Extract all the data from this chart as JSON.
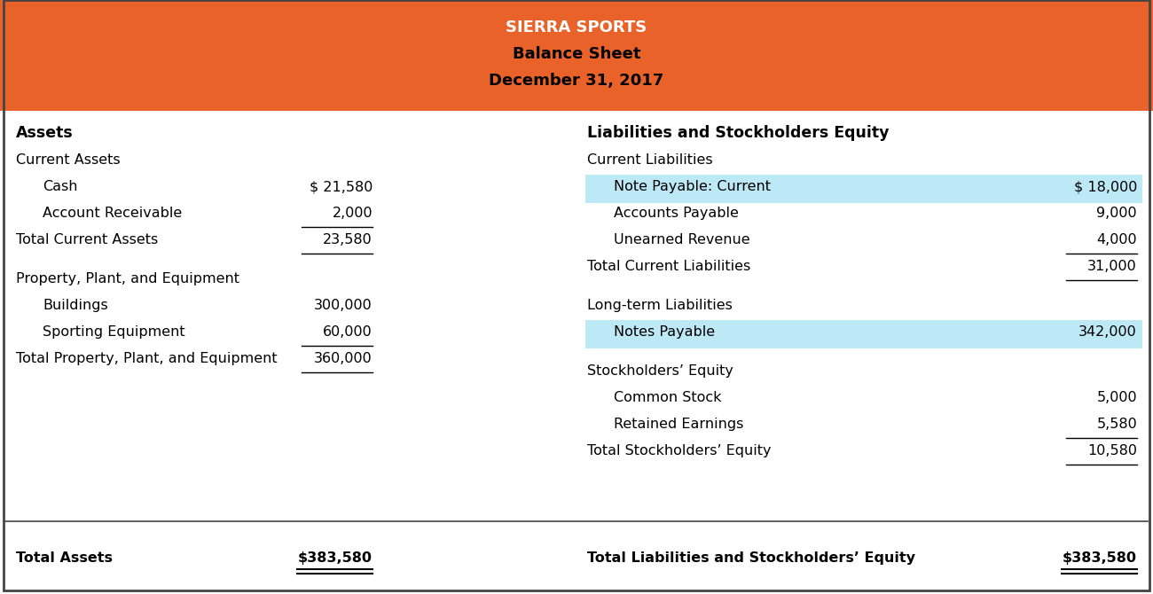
{
  "title_line1": "SIERRA SPORTS",
  "title_line2": "Balance Sheet",
  "title_line3": "December 31, 2017",
  "header_bg": "#E8622A",
  "header_text_color": "#FFFFFF",
  "body_bg": "#FFFFFF",
  "highlight_color": "#BDE8F5",
  "border_color": "#444444",
  "left_col_header": "Assets",
  "right_col_header": "Liabilities and Stockholders Equity",
  "left_section1_header": "Current Assets",
  "left_items": [
    {
      "label": "Cash",
      "value": "$ 21,580",
      "indent": true,
      "underline": false
    },
    {
      "label": "Account Receivable",
      "value": "2,000",
      "indent": true,
      "underline": true
    },
    {
      "label": "Total Current Assets",
      "value": "23,580",
      "indent": false,
      "underline": true
    }
  ],
  "left_section2_header": "Property, Plant, and Equipment",
  "left_items2": [
    {
      "label": "Buildings",
      "value": "300,000",
      "indent": true,
      "underline": false
    },
    {
      "label": "Sporting Equipment",
      "value": "60,000",
      "indent": true,
      "underline": true
    },
    {
      "label": "Total Property, Plant, and Equipment",
      "value": "360,000",
      "indent": false,
      "underline": true
    }
  ],
  "left_total": {
    "label": "Total Assets",
    "value": "$383,580"
  },
  "right_section1_header": "Current Liabilities",
  "right_items1": [
    {
      "label": "Note Payable: Current",
      "value": "$ 18,000",
      "indent": true,
      "underline": false,
      "highlight": true
    },
    {
      "label": "Accounts Payable",
      "value": "9,000",
      "indent": true,
      "underline": false,
      "highlight": false
    },
    {
      "label": "Unearned Revenue",
      "value": "4,000",
      "indent": true,
      "underline": true,
      "highlight": false
    },
    {
      "label": "Total Current Liabilities",
      "value": "31,000",
      "indent": false,
      "underline": true,
      "highlight": false
    }
  ],
  "right_section2_header": "Long-term Liabilities",
  "right_items2": [
    {
      "label": "Notes Payable",
      "value": "342,000",
      "indent": true,
      "underline": false,
      "highlight": true
    }
  ],
  "right_section3_header": "Stockholders’ Equity",
  "right_items3": [
    {
      "label": "Common Stock",
      "value": "5,000",
      "indent": true,
      "underline": false,
      "highlight": false
    },
    {
      "label": "Retained Earnings",
      "value": "5,580",
      "indent": true,
      "underline": true,
      "highlight": false
    },
    {
      "label": "Total Stockholders’ Equity",
      "value": "10,580",
      "indent": false,
      "underline": true,
      "highlight": false
    }
  ],
  "right_total": {
    "label": "Total Liabilities and Stockholders’ Equity",
    "value": "$383,580"
  }
}
